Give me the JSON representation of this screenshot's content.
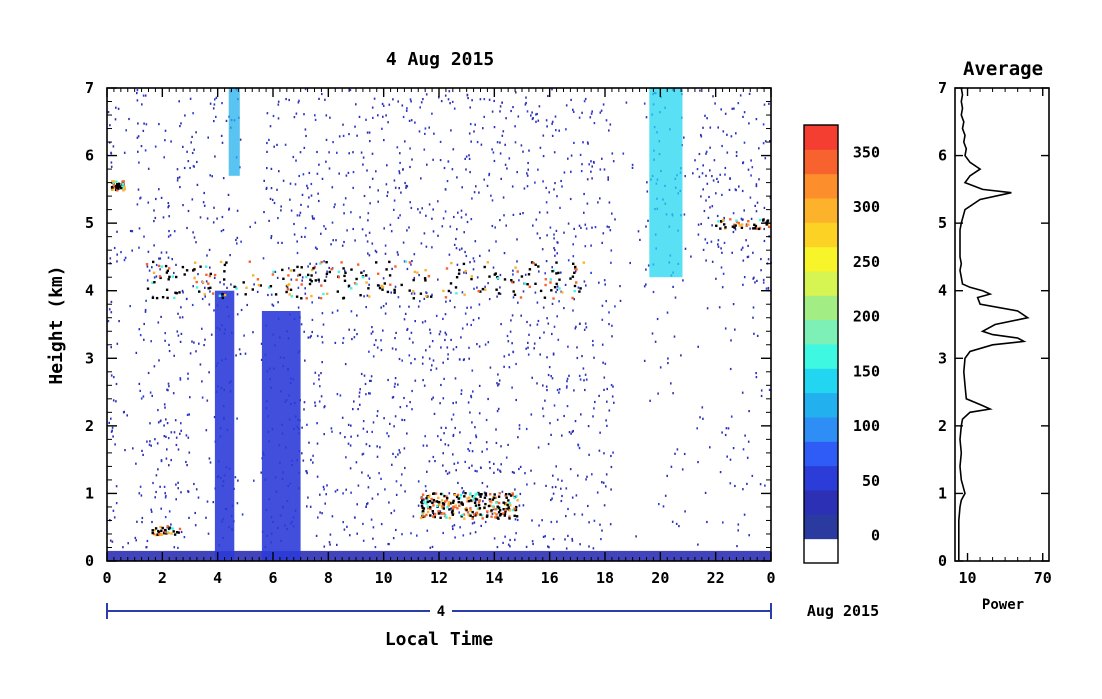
{
  "chart_data": [
    {
      "type": "heatmap",
      "title": "4 Aug 2015",
      "xlabel": "Local Time",
      "ylabel": "Height (km)",
      "xlim": [
        0,
        24
      ],
      "ylim": [
        0,
        7
      ],
      "x_ticks": [
        "0",
        "2",
        "4",
        "6",
        "8",
        "10",
        "12",
        "14",
        "16",
        "18",
        "20",
        "22",
        "0"
      ],
      "y_ticks": [
        "0",
        "1",
        "2",
        "3",
        "4",
        "5",
        "6",
        "7"
      ],
      "date_axis": {
        "day_label": "4",
        "month_label": "Aug 2015"
      },
      "colorbar": {
        "ticks": [
          "0",
          "50",
          "100",
          "150",
          "200",
          "250",
          "300",
          "350"
        ],
        "range": [
          -25,
          375
        ],
        "colors": [
          "#ffffff",
          "#2a3a9e",
          "#2c30b4",
          "#2c3cd8",
          "#2f5cf6",
          "#2f8ef6",
          "#22b0ee",
          "#22d6f2",
          "#3ef8e2",
          "#7cf0b6",
          "#a2ee84",
          "#d6f452",
          "#f8f42a",
          "#fcd224",
          "#fcb22a",
          "#fc8e2c",
          "#f8622e",
          "#f43e32"
        ]
      },
      "features": [
        {
          "kind": "boundary-layer",
          "x": [
            0,
            24
          ],
          "height_km": [
            0.0,
            0.15
          ],
          "value": 40
        },
        {
          "kind": "plume",
          "x": [
            3.9,
            4.6
          ],
          "height_km": [
            0.0,
            4.0
          ],
          "value": 60
        },
        {
          "kind": "plume",
          "x": [
            5.6,
            7.0
          ],
          "height_km": [
            0.0,
            3.7
          ],
          "value": 60
        },
        {
          "kind": "streak",
          "x": [
            19.6,
            20.8
          ],
          "height_km": [
            4.2,
            7.0
          ],
          "value": 140
        },
        {
          "kind": "streak",
          "x": [
            4.4,
            4.8
          ],
          "height_km": [
            5.7,
            7.0
          ],
          "value": 130
        },
        {
          "kind": "cloud-layer",
          "x": [
            1.4,
            17.2
          ],
          "height_km": [
            3.7,
            4.7
          ],
          "value": 350
        },
        {
          "kind": "cloud-layer",
          "x": [
            11.3,
            14.8
          ],
          "height_km": [
            0.5,
            1.2
          ],
          "value": 350
        },
        {
          "kind": "cloud-patch",
          "x": [
            0.1,
            0.6
          ],
          "height_km": [
            5.45,
            5.7
          ],
          "value": 350
        },
        {
          "kind": "cloud-patch",
          "x": [
            21.8,
            24.0
          ],
          "height_km": [
            4.85,
            5.15
          ],
          "value": 350
        },
        {
          "kind": "cloud-patch",
          "x": [
            1.6,
            2.6
          ],
          "height_km": [
            0.35,
            0.6
          ],
          "value": 350
        }
      ]
    },
    {
      "type": "line",
      "title": "Average",
      "xlabel": "Power",
      "ylabel": "",
      "xlim": [
        0,
        75
      ],
      "ylim": [
        0,
        7
      ],
      "x_ticks": [
        "10",
        "70"
      ],
      "y_ticks": [
        "0",
        "1",
        "2",
        "3",
        "4",
        "5",
        "6",
        "7"
      ],
      "series": [
        {
          "x": [
            5,
            6,
            5,
            6,
            5,
            7,
            6,
            8,
            7,
            9,
            8,
            12,
            20,
            12,
            8,
            22,
            45,
            20,
            8,
            5,
            4,
            4,
            4,
            4,
            4,
            5,
            4,
            5,
            6,
            12,
            22,
            28,
            18,
            20,
            50,
            58,
            32,
            22,
            30,
            50,
            55,
            30,
            12,
            8,
            7,
            8,
            9,
            22,
            28,
            12,
            6,
            5,
            4,
            5,
            4,
            5,
            8,
            5,
            4,
            3,
            3,
            3,
            3,
            3
          ],
          "y": [
            7.0,
            6.9,
            6.8,
            6.7,
            6.6,
            6.5,
            6.4,
            6.3,
            6.2,
            6.1,
            6.0,
            5.9,
            5.8,
            5.7,
            5.6,
            5.5,
            5.45,
            5.35,
            5.2,
            5.0,
            4.9,
            4.8,
            4.7,
            4.6,
            4.5,
            4.4,
            4.3,
            4.2,
            4.1,
            4.05,
            4.0,
            3.95,
            3.9,
            3.8,
            3.7,
            3.6,
            3.5,
            3.4,
            3.35,
            3.3,
            3.25,
            3.2,
            3.1,
            3.0,
            2.8,
            2.6,
            2.4,
            2.3,
            2.25,
            2.2,
            2.1,
            2.0,
            1.8,
            1.6,
            1.4,
            1.2,
            1.0,
            0.9,
            0.8,
            0.6,
            0.4,
            0.2,
            0.1,
            0.0
          ]
        }
      ]
    }
  ]
}
